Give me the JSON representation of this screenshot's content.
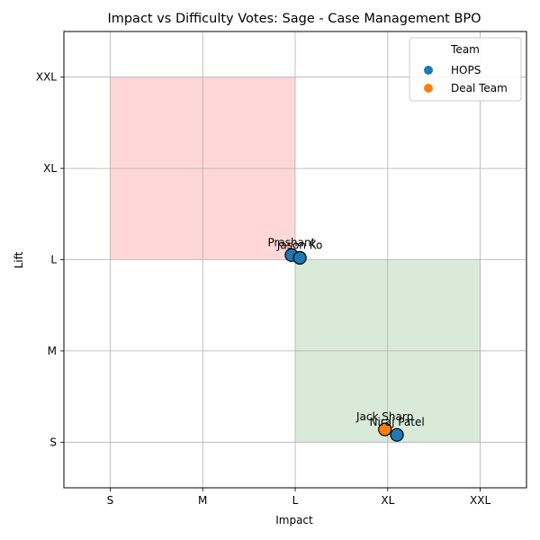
{
  "chart_data": {
    "type": "scatter",
    "title": "Impact vs Difficulty Votes: Sage - Case Management BPO",
    "xlabel": "Impact",
    "ylabel": "Lift",
    "x_categories": [
      "S",
      "M",
      "L",
      "XL",
      "XXL"
    ],
    "y_categories": [
      "S",
      "M",
      "L",
      "XL",
      "XXL"
    ],
    "xlim": [
      -0.5,
      4.5
    ],
    "ylim": [
      -0.5,
      4.5
    ],
    "grid": true,
    "regions": [
      {
        "x": [
          0,
          2
        ],
        "y": [
          2,
          4
        ],
        "color": "#ffd7d7"
      },
      {
        "x": [
          2,
          4
        ],
        "y": [
          0,
          2
        ],
        "color": "#d9ead9"
      }
    ],
    "legend": {
      "title": "Team",
      "placement": "top-right",
      "entries": [
        {
          "name": "HOPS",
          "color": "#1f77b4"
        },
        {
          "name": "Deal Team",
          "color": "#ff7f0e"
        }
      ]
    },
    "points": [
      {
        "name": "Prashant",
        "team": "HOPS",
        "x": 1.96,
        "y": 2.05
      },
      {
        "name": "Jason Ko",
        "team": "HOPS",
        "x": 2.05,
        "y": 2.02
      },
      {
        "name": "Jack Sharp",
        "team": "Deal Team",
        "x": 2.97,
        "y": 0.14
      },
      {
        "name": "Niraj Patel",
        "team": "HOPS",
        "x": 3.1,
        "y": 0.08
      }
    ]
  }
}
